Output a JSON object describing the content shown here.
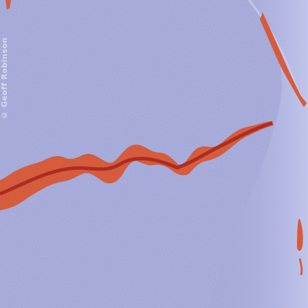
{
  "watermark": {
    "text": "© Geoff Robinson"
  },
  "colors": {
    "surface": "#9aa0d6",
    "surface_light": "#b9bde6",
    "crack_overlay": "#d9552f",
    "crack_dark": "#a3201a"
  }
}
